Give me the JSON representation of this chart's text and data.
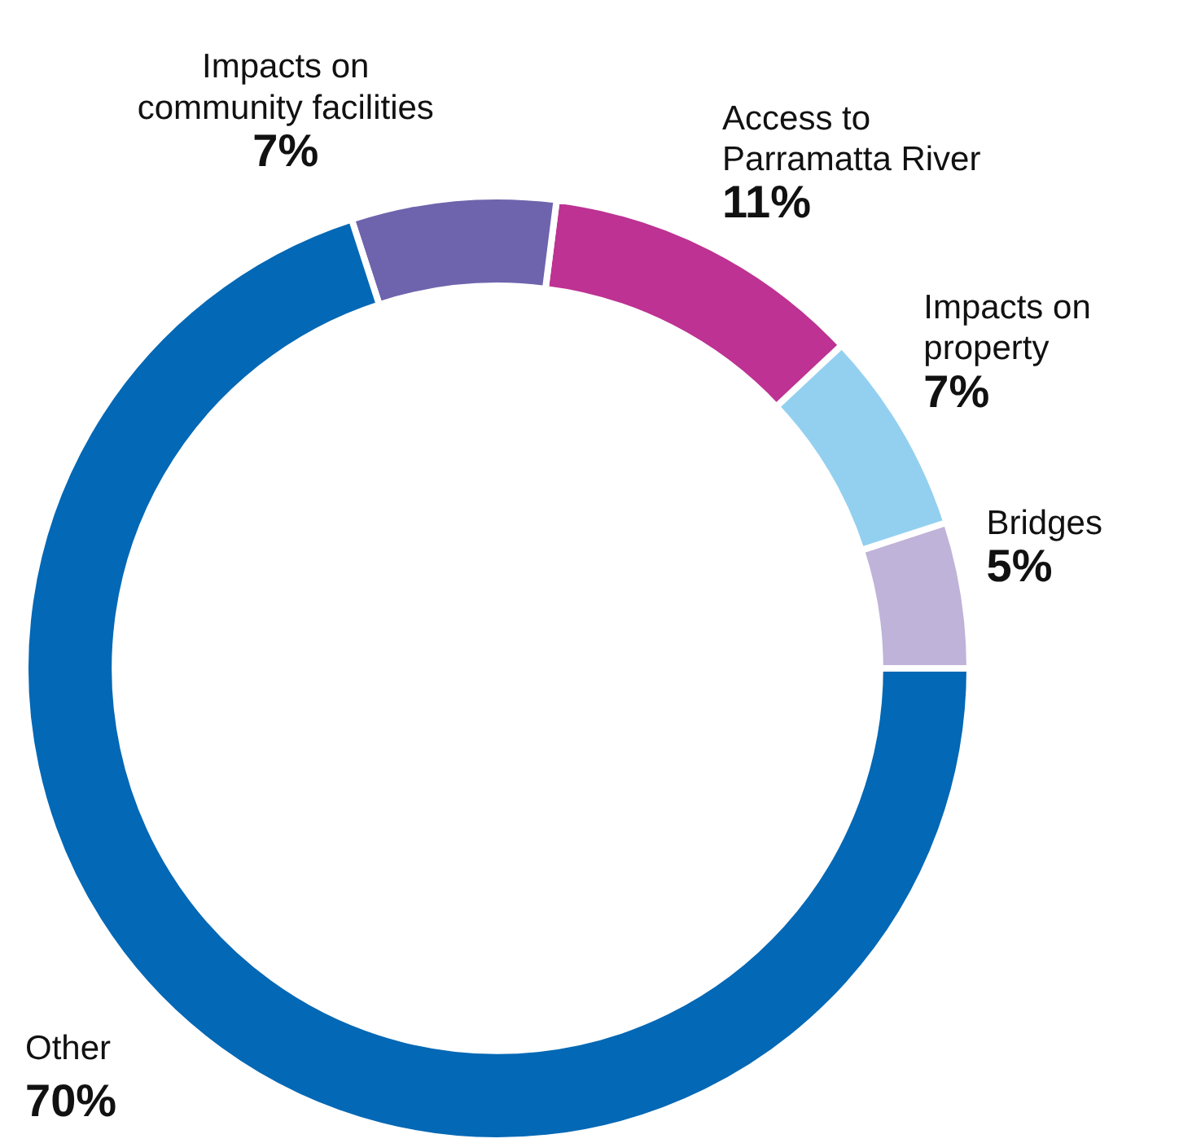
{
  "chart_data": {
    "type": "donut",
    "categories": [
      "Bridges",
      "Impacts on property",
      "Access to Parramatta River",
      "Impacts on community facilities",
      "Other"
    ],
    "values": [
      5,
      7,
      11,
      7,
      70
    ],
    "value_labels": [
      "5%",
      "7%",
      "11%",
      "7%",
      "70%"
    ],
    "colors": [
      "#c0b3d9",
      "#93d0f0",
      "#bd3292",
      "#6e64ad",
      "#0368b5"
    ],
    "legend": false
  }
}
